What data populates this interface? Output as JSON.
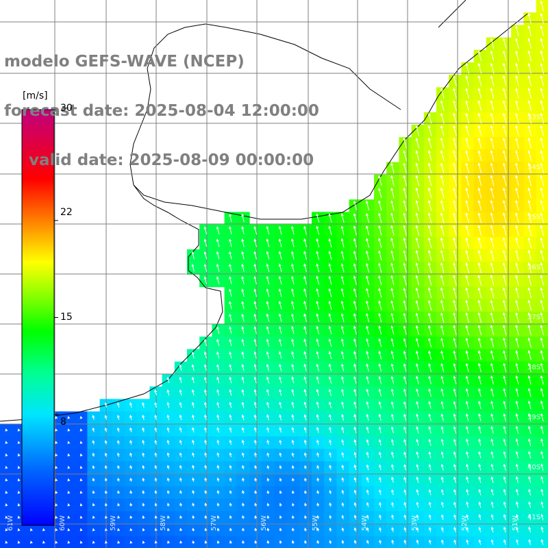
{
  "title": {
    "line1": "modelo GEFS-WAVE (NCEP)",
    "line2": "forecast date: 2025-08-04 12:00:00",
    "line3": "valid date: 2025-08-09 00:00:00"
  },
  "colorbar": {
    "unit": "[m/s]",
    "ticks": [
      {
        "label": "30",
        "value": 30
      },
      {
        "label": "22",
        "value": 22
      },
      {
        "label": "15",
        "value": 15
      },
      {
        "label": "8",
        "value": 8
      }
    ],
    "range": [
      0,
      30
    ],
    "colors": [
      "#0000ff",
      "#0080ff",
      "#00e6ff",
      "#00ff80",
      "#00ff00",
      "#80ff00",
      "#ffff00",
      "#ffa000",
      "#ff4000",
      "#ff0000",
      "#e00060",
      "#c00080"
    ]
  },
  "lat_labels": [
    "33S",
    "34S",
    "35S",
    "36S",
    "37S",
    "38S",
    "39S",
    "40S",
    "41S"
  ],
  "lon_labels": [
    "61W",
    "60W",
    "59W",
    "58W",
    "57W",
    "56W",
    "55W",
    "54W",
    "53W",
    "52W",
    "51W"
  ],
  "colors": {
    "land": "#ffffff",
    "coastline": "#000000",
    "grid": "#7f7f7f",
    "title": "#808080",
    "arrows": "#ffffff"
  }
}
